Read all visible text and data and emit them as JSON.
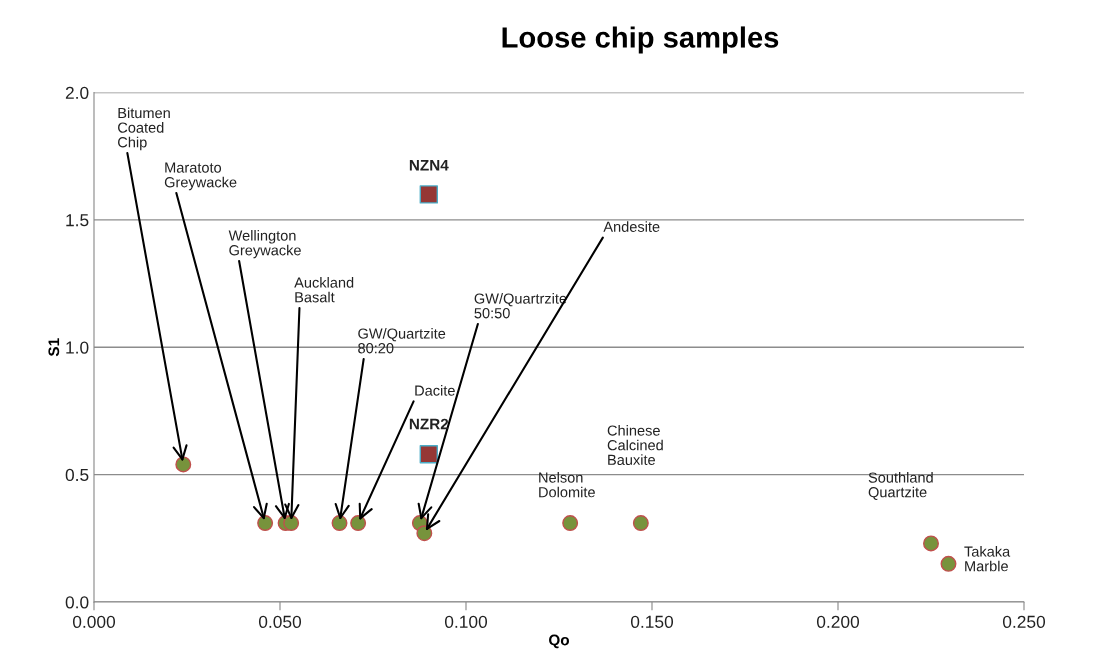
{
  "chart_data": {
    "type": "scatter",
    "title": "Loose chip samples",
    "xlabel": "Qo",
    "ylabel": "S1",
    "series": [
      {
        "marker": "circle",
        "color": "#77933c",
        "x": [
          0.024,
          0.046,
          0.0515,
          0.053,
          0.066,
          0.071,
          0.0876,
          0.0888,
          0.128,
          0.147,
          0.225,
          0.2297
        ],
        "values": [
          0.54,
          0.31,
          0.31,
          0.31,
          0.31,
          0.31,
          0.31,
          0.27,
          0.31,
          0.31,
          0.23,
          0.15
        ]
      },
      {
        "marker": "square",
        "color": "#953735",
        "x": [
          0.09,
          0.09
        ],
        "values": [
          1.6,
          0.58
        ]
      }
    ],
    "xlim": [
      0,
      0.25
    ],
    "xticks": [
      {
        "value": 0,
        "label": "0.000"
      },
      {
        "value": 0.05,
        "label": "0.050"
      },
      {
        "value": 0.1,
        "label": "0.100"
      },
      {
        "value": 0.15,
        "label": "0.150"
      },
      {
        "value": 0.2,
        "label": "0.200"
      },
      {
        "value": 0.25,
        "label": "0.250"
      }
    ],
    "ylim": [
      0,
      2
    ],
    "yticks": [
      {
        "value": 0,
        "label": "0.0"
      },
      {
        "value": 0.5,
        "label": "0.5"
      },
      {
        "value": 1,
        "label": "1.0"
      },
      {
        "value": 1.5,
        "label": "1.5"
      },
      {
        "value": 2,
        "label": "2.0"
      }
    ],
    "grid": "y",
    "legend": false,
    "annotations": [
      {
        "text": "Bitumen\nCoated\nChip",
        "x": 0.024,
        "y": 0.54
      },
      {
        "text": "Maratoto\nGreywacke",
        "x": 0.046,
        "y": 0.31
      },
      {
        "text": "Wellington\nGreywacke",
        "x": 0.0515,
        "y": 0.31
      },
      {
        "text": "Auckland\nBasalt",
        "x": 0.053,
        "y": 0.31
      },
      {
        "text": "GW/Quartzite\n80:20",
        "x": 0.066,
        "y": 0.31
      },
      {
        "text": "Dacite",
        "x": 0.071,
        "y": 0.31
      },
      {
        "text": "GW/Quartrzite\n50:50",
        "x": 0.0876,
        "y": 0.31
      },
      {
        "text": "Andesite",
        "x": 0.0888,
        "y": 0.27
      },
      "Nelson\nDolomite",
      "Chinese\nCalcined\nBauxite",
      "Southland\nQuartzite",
      "Takaka\nMarble",
      {
        "text": "NZN4",
        "x": 0.09,
        "y": 1.6
      },
      {
        "text": "NZR2",
        "x": 0.09,
        "y": 0.58
      }
    ]
  }
}
